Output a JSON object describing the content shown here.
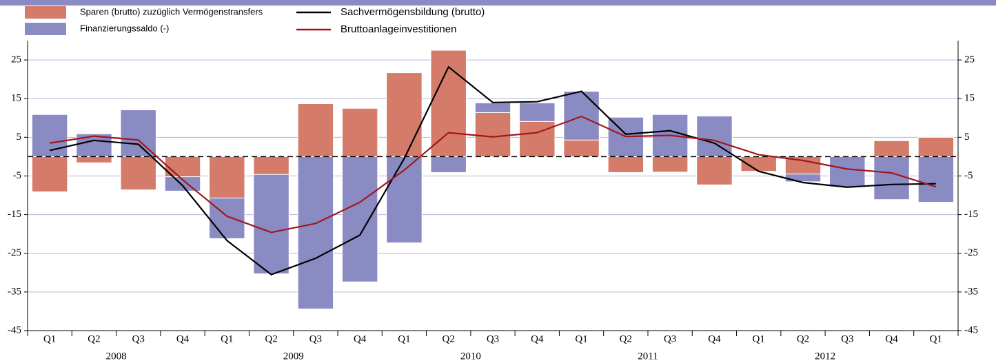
{
  "chart_data": {
    "type": "bar",
    "categories": [
      "Q1",
      "Q2",
      "Q3",
      "Q4",
      "Q1",
      "Q2",
      "Q3",
      "Q4",
      "Q1",
      "Q2",
      "Q3",
      "Q4",
      "Q1",
      "Q2",
      "Q3",
      "Q4",
      "Q1",
      "Q2",
      "Q3",
      "Q4",
      "Q1"
    ],
    "years": [
      "2008",
      "2009",
      "2010",
      "2011",
      "2012"
    ],
    "series": [
      {
        "name": "Sparen (brutto) zuzüglich Vermögenstransfers",
        "color": "#d47b6a",
        "kind": "bar",
        "values": [
          -9.1,
          -1.6,
          -8.6,
          -5.2,
          -10.7,
          -4.6,
          13.7,
          12.5,
          21.7,
          27.5,
          11.4,
          9.1,
          4.3,
          -4.1,
          -4.0,
          -7.3,
          -3.8,
          -4.5,
          0,
          4.1,
          5.0
        ]
      },
      {
        "name": "Finanzierungssaldo (-)",
        "color": "#8b8bc3",
        "kind": "bar",
        "values": [
          10.9,
          5.9,
          12.1,
          -3.7,
          -10.5,
          -25.7,
          -39.4,
          -32.4,
          -22.3,
          -4.1,
          2.5,
          4.8,
          12.6,
          10.2,
          10.9,
          10.5,
          0,
          -2.0,
          -7.8,
          -11.1,
          -11.8
        ]
      },
      {
        "name": "Sachvermögensbildung (brutto)",
        "color": "#000000",
        "kind": "line",
        "values": [
          1.6,
          4.2,
          3.2,
          -7.5,
          -21.7,
          -30.5,
          -26.3,
          -20.3,
          -0.5,
          23.2,
          14.0,
          14.2,
          16.9,
          5.8,
          6.7,
          3.5,
          -3.8,
          -6.7,
          -7.9,
          -7.2,
          -7.0
        ]
      },
      {
        "name": "Bruttoanlageinvestitionen",
        "color": "#a0171b",
        "kind": "line",
        "values": [
          3.5,
          5.3,
          4.3,
          -6.0,
          -15.4,
          -19.6,
          -17.3,
          -11.8,
          -3.5,
          6.2,
          5.1,
          6.2,
          10.4,
          5.2,
          5.5,
          4.2,
          0.5,
          -1.0,
          -3.2,
          -4.2,
          -7.8
        ]
      }
    ],
    "ylim": [
      -45,
      30
    ],
    "yticks": [
      -45,
      -35,
      -25,
      -15,
      -5,
      5,
      15,
      25
    ],
    "grid": true
  }
}
